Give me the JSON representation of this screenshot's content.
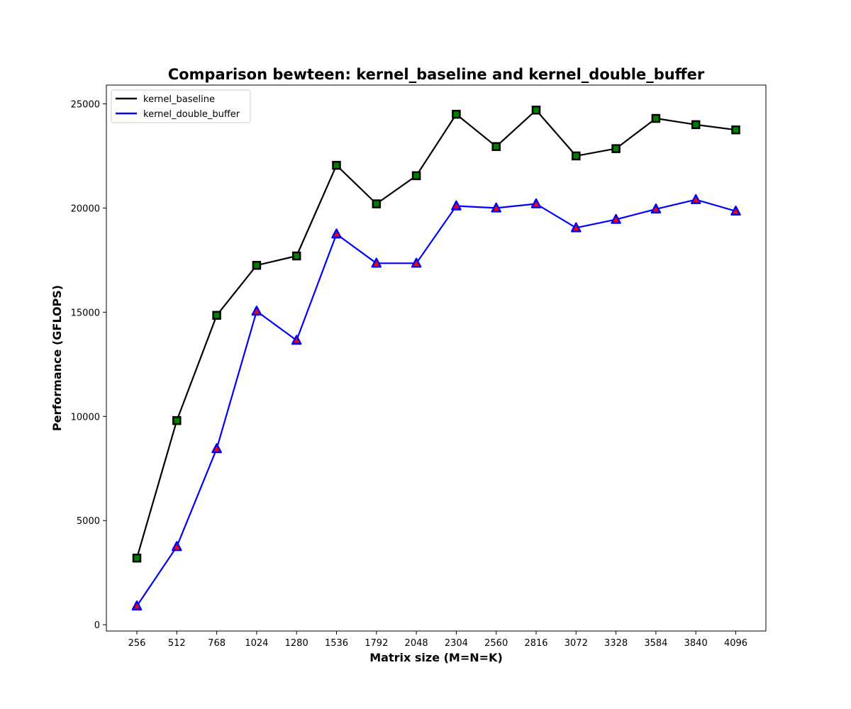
{
  "chart_data": {
    "type": "line",
    "title": "Comparison bewteen: kernel_baseline and kernel_double_buffer",
    "xlabel": "Matrix size (M=N=K)",
    "ylabel": "Performance (GFLOPS)",
    "categories": [
      "256",
      "512",
      "768",
      "1024",
      "1280",
      "1536",
      "1792",
      "2048",
      "2304",
      "2560",
      "2816",
      "3072",
      "3328",
      "3584",
      "3840",
      "4096"
    ],
    "yticks": [
      "0",
      "5000",
      "10000",
      "15000",
      "20000",
      "25000"
    ],
    "ylim": [
      -300,
      25900
    ],
    "grid": false,
    "legend_position": "top-left",
    "series": [
      {
        "name": "kernel_baseline",
        "color": "#000000",
        "marker": "square",
        "marker_fill": "#008000",
        "values": [
          3200,
          9800,
          14850,
          17250,
          17700,
          22050,
          20200,
          21550,
          24500,
          22950,
          24700,
          22500,
          22850,
          24300,
          24000,
          23750
        ]
      },
      {
        "name": "kernel_double_buffer",
        "color": "#0000ff",
        "marker": "triangle",
        "marker_fill": "#ff0000",
        "values": [
          900,
          3750,
          8450,
          15050,
          13650,
          18750,
          17350,
          17350,
          20100,
          20000,
          20200,
          19050,
          19450,
          19950,
          20400,
          19850
        ]
      }
    ]
  }
}
